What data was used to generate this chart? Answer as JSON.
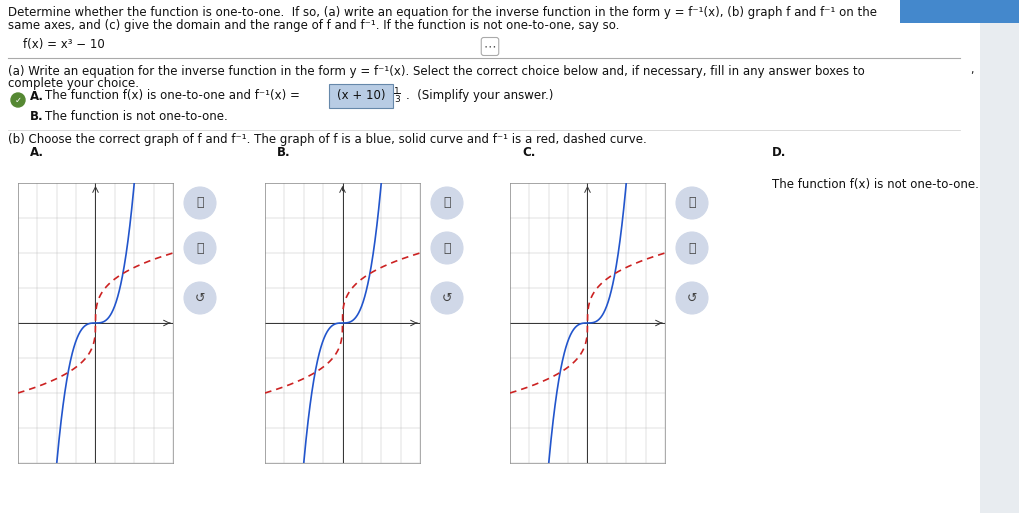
{
  "bg_color": "#e8ecf0",
  "white": "#ffffff",
  "text_color": "#111111",
  "f_color": "#2255cc",
  "finv_color": "#cc2222",
  "grid_color": "#bbbbbb",
  "line1": "Determine whether the function is one-to-one.  If so, (a) write an equation for the inverse function in the form y = f⁻¹(x), (b) graph f and f⁻¹ on the",
  "line2": "same axes, and (c) give the domain and the range of f and f⁻¹. If the function is not one-to-one, say so.",
  "fx_line": "    f(x) = x³ − 10",
  "part_a_line1": "(a) Write an equation for the inverse function in the form y = f⁻¹(x). Select the correct choice below and, if necessary, fill in any answer boxes to",
  "part_a_line2": "complete your choice.",
  "choiceA_pre": "The function f(x) is one-to-one and f⁻¹(x) = ",
  "choiceA_box": "(x + 10)",
  "choiceA_exp_num": "1",
  "choiceA_exp_den": "3",
  "choiceA_post": ".  (Simplify your answer.)",
  "choiceB_text": "The function is not one-to-one.",
  "part_b_line": "(b) Choose the correct graph of f and f⁻¹. The graph of f is a blue, solid curve and f⁻¹ is a red, dashed curve.",
  "graph_D_text": "The function f(x) is not one-to-one.",
  "checkmark_green": "#3a7a3a",
  "radio_border": "#777777"
}
